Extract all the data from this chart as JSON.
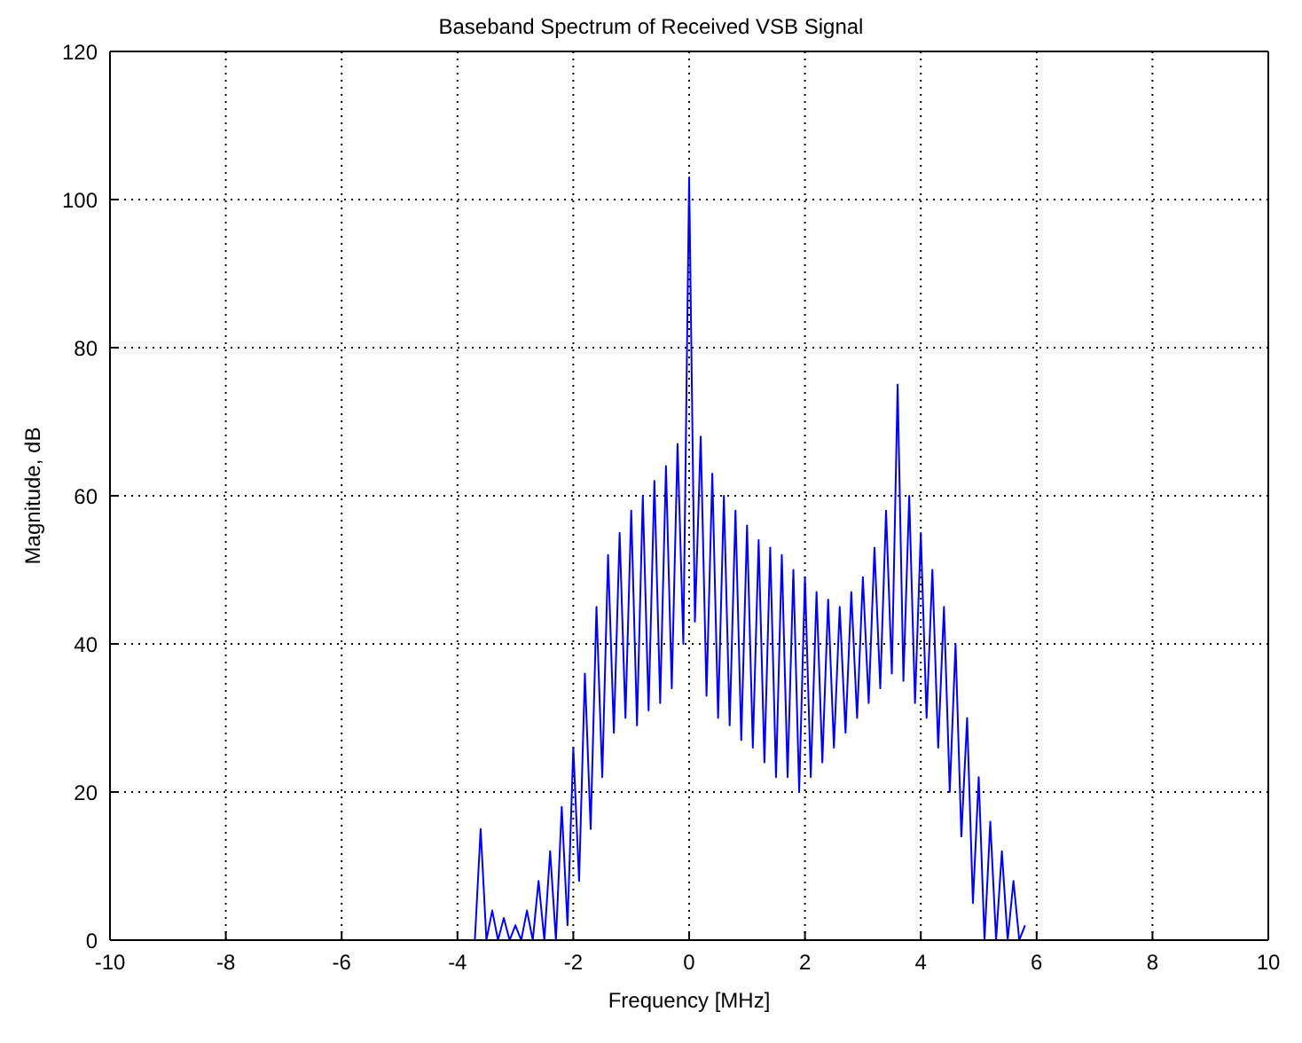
{
  "chart_data": {
    "type": "line",
    "title": "Baseband Spectrum of Received VSB Signal",
    "xlabel": "Frequency [MHz]",
    "ylabel": "Magnitude, dB",
    "x": [
      -3.7,
      -3.6,
      -3.5,
      -3.4,
      -3.3,
      -3.2,
      -3.1,
      -3.0,
      -2.9,
      -2.8,
      -2.7,
      -2.6,
      -2.5,
      -2.4,
      -2.3,
      -2.2,
      -2.1,
      -2.0,
      -1.9,
      -1.8,
      -1.7,
      -1.6,
      -1.5,
      -1.4,
      -1.3,
      -1.2,
      -1.1,
      -1.0,
      -0.9,
      -0.8,
      -0.7,
      -0.6,
      -0.5,
      -0.4,
      -0.3,
      -0.2,
      -0.1,
      0.0,
      0.1,
      0.2,
      0.3,
      0.4,
      0.5,
      0.6,
      0.7,
      0.8,
      0.9,
      1.0,
      1.1,
      1.2,
      1.3,
      1.4,
      1.5,
      1.6,
      1.7,
      1.8,
      1.9,
      2.0,
      2.1,
      2.2,
      2.3,
      2.4,
      2.5,
      2.6,
      2.7,
      2.8,
      2.9,
      3.0,
      3.1,
      3.2,
      3.3,
      3.4,
      3.5,
      3.6,
      3.7,
      3.8,
      3.9,
      4.0,
      4.1,
      4.2,
      4.3,
      4.4,
      4.5,
      4.6,
      4.7,
      4.8,
      4.9,
      5.0,
      5.1,
      5.2,
      5.3,
      5.4,
      5.5,
      5.6,
      5.7,
      5.8
    ],
    "series": [
      {
        "color": "#0000ff",
        "values": [
          0,
          15,
          0,
          4,
          0,
          3,
          0,
          2,
          0,
          4,
          0,
          8,
          0,
          12,
          0,
          18,
          2,
          26,
          8,
          36,
          15,
          45,
          22,
          52,
          28,
          55,
          30,
          58,
          29,
          60,
          31,
          62,
          32,
          64,
          34,
          67,
          40,
          103,
          43,
          68,
          33,
          63,
          30,
          60,
          29,
          58,
          27,
          56,
          26,
          54,
          24,
          53,
          22,
          52,
          22,
          50,
          20,
          49,
          22,
          47,
          24,
          46,
          26,
          45,
          28,
          47,
          30,
          49,
          32,
          53,
          34,
          58,
          36,
          75,
          35,
          60,
          32,
          55,
          30,
          50,
          26,
          45,
          20,
          40,
          14,
          30,
          5,
          22,
          0,
          16,
          0,
          12,
          0,
          8,
          0,
          2
        ]
      }
    ],
    "xlim": [
      -10,
      10
    ],
    "ylim": [
      0,
      120
    ],
    "xticks": [
      -10,
      -8,
      -6,
      -4,
      -2,
      0,
      2,
      4,
      6,
      8,
      10
    ],
    "yticks": [
      0,
      20,
      40,
      60,
      80,
      100,
      120
    ],
    "grid": true,
    "marker": "none",
    "line_style": "solid"
  }
}
